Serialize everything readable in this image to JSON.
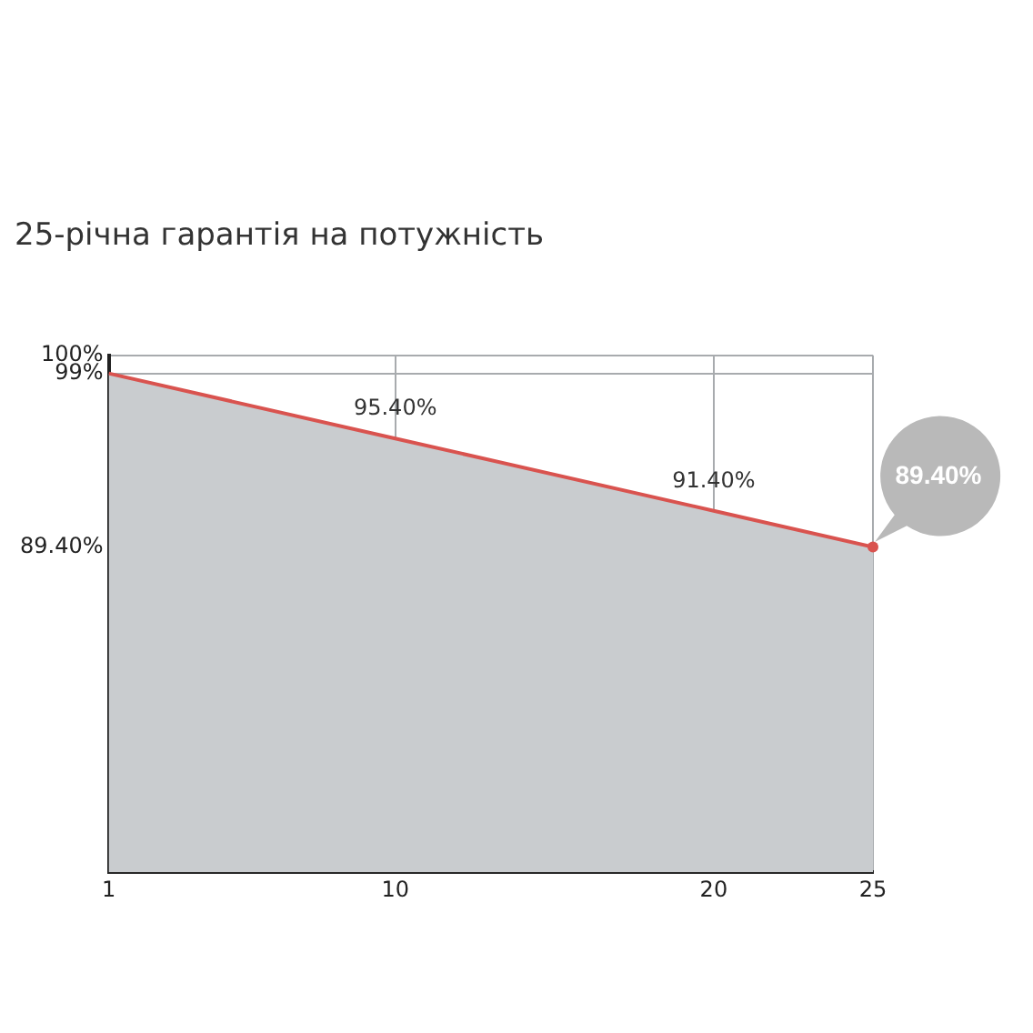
{
  "chart_data": {
    "type": "area",
    "title": "25-річна гарантія на потужність",
    "x": [
      1,
      10,
      20,
      25
    ],
    "series": [
      {
        "color": "#d9534f",
        "values": [
          99,
          95.4,
          91.4,
          89.4
        ],
        "value_labels": [
          null,
          "95.40%",
          "91.40%",
          "89.40%"
        ]
      }
    ],
    "xlim": [
      1,
      25
    ],
    "xticks": [
      1,
      10,
      20,
      25
    ],
    "ylim": [
      71.4,
      100
    ],
    "yticks": [
      {
        "value": 100,
        "label": "100%"
      },
      {
        "value": 99,
        "label": "99%"
      },
      {
        "value": 89.4,
        "label": "89.40%"
      }
    ],
    "grid": true,
    "legend": false,
    "marker": "none"
  }
}
